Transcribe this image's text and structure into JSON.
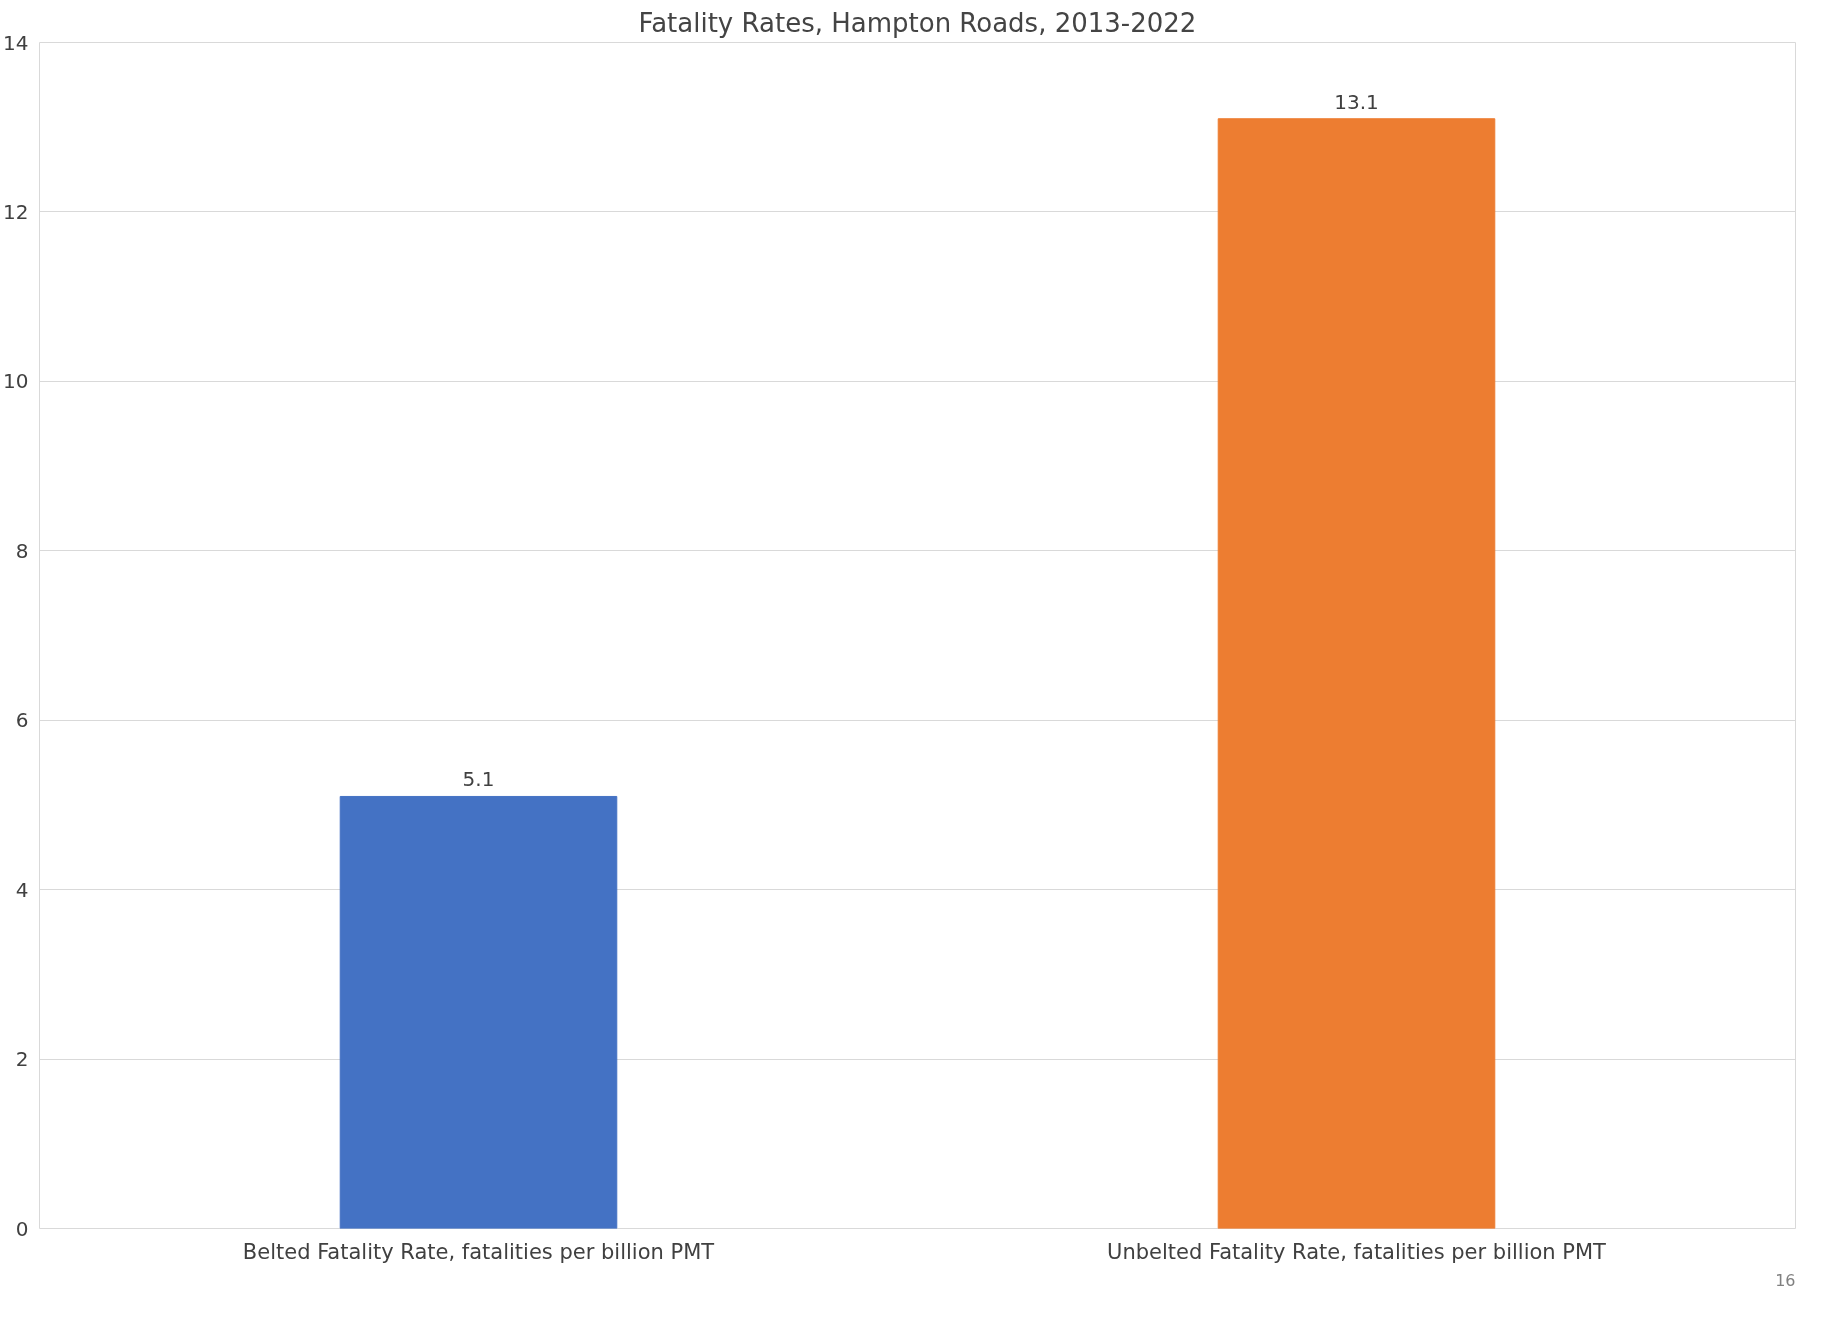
{
  "chart_data": {
    "type": "bar",
    "title": "Fatality Rates, Hampton Roads, 2013-2022",
    "categories": [
      "Belted Fatality Rate, fatalities per billion PMT",
      "Unbelted Fatality Rate, fatalities per billion PMT"
    ],
    "values": [
      5.1,
      13.1
    ],
    "colors": [
      "#4472c4",
      "#ed7d31"
    ],
    "ylim": [
      0,
      14
    ],
    "yticks": [
      0,
      2,
      4,
      6,
      8,
      10,
      12,
      14
    ],
    "grid": "y",
    "data_labels": true,
    "annotations": [
      "16"
    ]
  }
}
